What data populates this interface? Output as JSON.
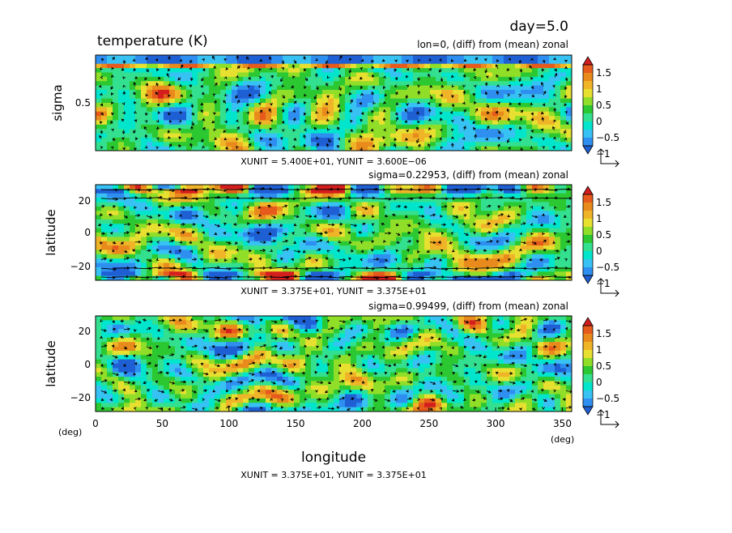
{
  "chart_data": {
    "type": "heatmap",
    "title": "temperature (K)",
    "day_label": "day=5.0",
    "xlabel": "longitude",
    "x_unit_label": "(deg)",
    "x_ticks": [
      "0",
      "50",
      "100",
      "150",
      "200",
      "250",
      "300",
      "350"
    ],
    "xlim": [
      0,
      357
    ],
    "colorbar": {
      "levels": [
        -1.25,
        -1,
        -0.75,
        -0.5,
        -0.25,
        0,
        0.25,
        0.5,
        0.75,
        1,
        1.25,
        1.5,
        1.75
      ],
      "tick_labels": [
        "1.5",
        "1",
        "0.5",
        "0",
        "−0.5",
        "−1"
      ],
      "colors": [
        "#1f5fd4",
        "#2f8ff0",
        "#38c2f4",
        "#00e5cc",
        "#32e090",
        "#2cc832",
        "#90de28",
        "#e8e030",
        "#f0b428",
        "#e88a1c",
        "#e65a1c",
        "#d41e1e"
      ]
    },
    "panels": [
      {
        "name": "sigma-section",
        "subtitle": "lon=0, (diff) from (mean) zonal",
        "ylabel": "sigma",
        "y_ticks": [
          "0.5"
        ],
        "ylim": [
          1.0,
          0.0
        ],
        "unit_label": "XUNIT = 5.400E+01, YUNIT = 3.600E−06"
      },
      {
        "name": "upper-level",
        "subtitle": "sigma=0.22953, (diff) from (mean) zonal",
        "ylabel": "latitude",
        "y_ticks": [
          "20",
          "0",
          "−20"
        ],
        "ylim": [
          -28,
          28
        ],
        "unit_label": "XUNIT = 3.375E+01, YUNIT = 3.375E+01"
      },
      {
        "name": "surface-level",
        "subtitle": "sigma=0.99499, (diff) from (mean) zonal",
        "ylabel": "latitude",
        "y_ticks": [
          "20",
          "0",
          "−20"
        ],
        "y_unit_label": "(deg)",
        "ylim": [
          -28,
          28
        ],
        "unit_label": "XUNIT = 3.375E+01, YUNIT = 3.375E+01"
      }
    ]
  }
}
